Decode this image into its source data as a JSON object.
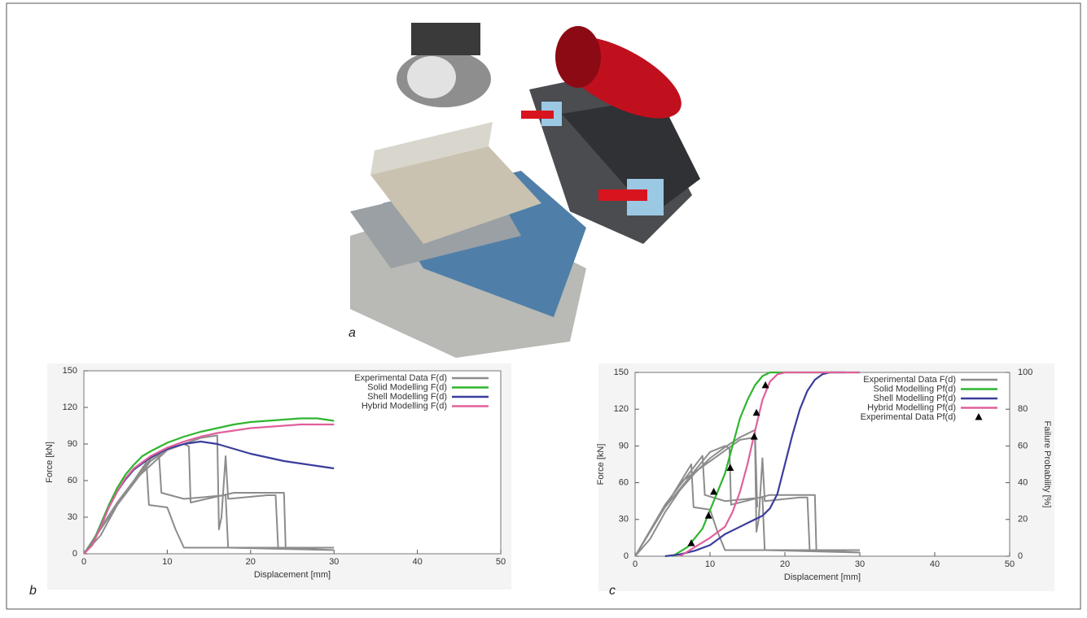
{
  "panel_a": {
    "label": "a"
  },
  "chart_data": [
    {
      "type": "line",
      "panel_label": "b",
      "x_label": "Displacement [mm]",
      "y_label": "Force [kN]",
      "xlim": [
        0,
        50
      ],
      "xticks": [
        0,
        10,
        20,
        30,
        40,
        50
      ],
      "ylim": [
        0,
        150
      ],
      "yticks": [
        0,
        30,
        60,
        90,
        120,
        150
      ],
      "legend": "upper right",
      "series": [
        {
          "name": "Experimental Data F(d)",
          "color": "#8c8c8c",
          "x": [
            0,
            2,
            4,
            6,
            7.5,
            7.8,
            10,
            11,
            12,
            30,
            null,
            0,
            4,
            8,
            9,
            9.3,
            12,
            17,
            17.3,
            30,
            null,
            0,
            4,
            8,
            10,
            12,
            12.6,
            12.8,
            18,
            24,
            24.2,
            30,
            null,
            0,
            6,
            10,
            14,
            16,
            16.2,
            16.5,
            17,
            17.3,
            22,
            23,
            23.3,
            30
          ],
          "values": [
            0,
            15,
            40,
            60,
            75,
            40,
            38,
            20,
            5,
            5,
            null,
            0,
            42,
            78,
            82,
            50,
            45,
            48,
            5,
            3,
            null,
            0,
            40,
            76,
            85,
            90,
            88,
            42,
            50,
            50,
            5,
            5,
            null,
            0,
            60,
            85,
            95,
            97,
            20,
            30,
            80,
            45,
            48,
            48,
            5,
            3
          ]
        },
        {
          "name": "Solid Modelling F(d)",
          "color": "#2fb52f",
          "x": [
            0,
            1,
            2,
            3,
            4,
            5,
            6,
            7,
            8,
            10,
            12,
            14,
            16,
            18,
            20,
            22,
            24,
            26,
            28,
            30
          ],
          "values": [
            0,
            8,
            24,
            40,
            54,
            65,
            73,
            80,
            84,
            91,
            96,
            100,
            103,
            106,
            108,
            109,
            110,
            111,
            111,
            109
          ]
        },
        {
          "name": "Shell Modelling F(d)",
          "color": "#3a3d9c",
          "x": [
            0,
            1,
            2,
            3,
            4,
            5,
            6,
            8,
            10,
            12,
            14,
            16,
            18,
            20,
            22,
            24,
            26,
            28,
            30
          ],
          "values": [
            0,
            7,
            22,
            38,
            51,
            61,
            69,
            79,
            86,
            90,
            92,
            90,
            86,
            82,
            79,
            76,
            74,
            72,
            70
          ]
        },
        {
          "name": "Hybrid Modelling F(d)",
          "color": "#e0609c",
          "x": [
            0,
            1,
            2,
            3,
            4,
            5,
            6,
            8,
            10,
            12,
            14,
            16,
            18,
            20,
            22,
            24,
            26,
            28,
            30
          ],
          "values": [
            0,
            7,
            22,
            38,
            51,
            62,
            70,
            80,
            87,
            92,
            96,
            99,
            101,
            103,
            104,
            105,
            106,
            106,
            106
          ]
        }
      ]
    },
    {
      "type": "line",
      "panel_label": "c",
      "x_label": "Displacement [mm]",
      "y_label": "Force [kN]",
      "y2_label": "Failure Probability [%]",
      "xlim": [
        0,
        50
      ],
      "xticks": [
        0,
        10,
        20,
        30,
        40,
        50
      ],
      "ylim": [
        0,
        150
      ],
      "yticks": [
        0,
        30,
        60,
        90,
        120,
        150
      ],
      "y2lim": [
        0,
        100
      ],
      "y2ticks": [
        0,
        20,
        40,
        60,
        80,
        100
      ],
      "legend": "upper right",
      "series": [
        {
          "name": "Experimental Data F(d)",
          "color": "#8c8c8c",
          "x": [
            0,
            2,
            4,
            6,
            8,
            10,
            12,
            14,
            16,
            16.3,
            null,
            0,
            4,
            7.5,
            7.8,
            10,
            11,
            12,
            30,
            null,
            0,
            4,
            9,
            9.3,
            12,
            17,
            17.3,
            30,
            null,
            0,
            4,
            10,
            12,
            12.6,
            12.8,
            18,
            24,
            24.2,
            30,
            null,
            0,
            6,
            14,
            16,
            16.2,
            16.5,
            17,
            17.3,
            22,
            23,
            23.3,
            30
          ],
          "values": [
            0,
            14,
            36,
            54,
            68,
            80,
            89,
            97,
            103,
            40,
            null,
            0,
            40,
            75,
            40,
            38,
            20,
            5,
            5,
            null,
            0,
            42,
            82,
            50,
            45,
            48,
            5,
            3,
            null,
            0,
            40,
            85,
            90,
            88,
            42,
            50,
            50,
            5,
            5,
            null,
            0,
            60,
            95,
            97,
            20,
            30,
            80,
            45,
            48,
            48,
            5,
            3
          ]
        },
        {
          "name": "Solid Modelling Pf(d)",
          "color": "#2fb52f",
          "axis": "y2",
          "x": [
            5,
            7,
            8,
            9,
            10,
            11,
            12,
            13,
            14,
            15,
            16,
            17,
            18,
            19,
            20,
            30
          ],
          "values": [
            0,
            5,
            10,
            15,
            25,
            35,
            45,
            60,
            75,
            85,
            93,
            98,
            100,
            100,
            100,
            100
          ]
        },
        {
          "name": "Shell Modelling Pf(d)",
          "color": "#3a3d9c",
          "axis": "y2",
          "x": [
            4,
            6,
            8,
            10,
            12,
            14,
            15,
            16,
            17,
            18,
            19,
            20,
            21,
            22,
            23,
            24,
            25,
            26,
            27,
            28
          ],
          "values": [
            0,
            1,
            3,
            6,
            12,
            16,
            18,
            20,
            22,
            26,
            34,
            50,
            66,
            80,
            90,
            96,
            99,
            100,
            100,
            100
          ]
        },
        {
          "name": "Hybrid Modelling Pf(d)",
          "color": "#e0609c",
          "axis": "y2",
          "x": [
            6,
            8,
            10,
            12,
            13,
            14,
            15,
            16,
            17,
            18,
            19,
            20,
            21,
            30
          ],
          "values": [
            0,
            5,
            10,
            16,
            24,
            35,
            50,
            68,
            85,
            95,
            99,
            100,
            100,
            100
          ]
        },
        {
          "name": "Experimental Data Pf(d)",
          "color": "#000000",
          "axis": "y2",
          "marker": "triangle",
          "x": [
            7.5,
            9.8,
            10.5,
            12.7,
            15.9,
            16.2,
            17.4
          ],
          "values": [
            7,
            22,
            35,
            48,
            65,
            78,
            93
          ]
        }
      ]
    }
  ]
}
